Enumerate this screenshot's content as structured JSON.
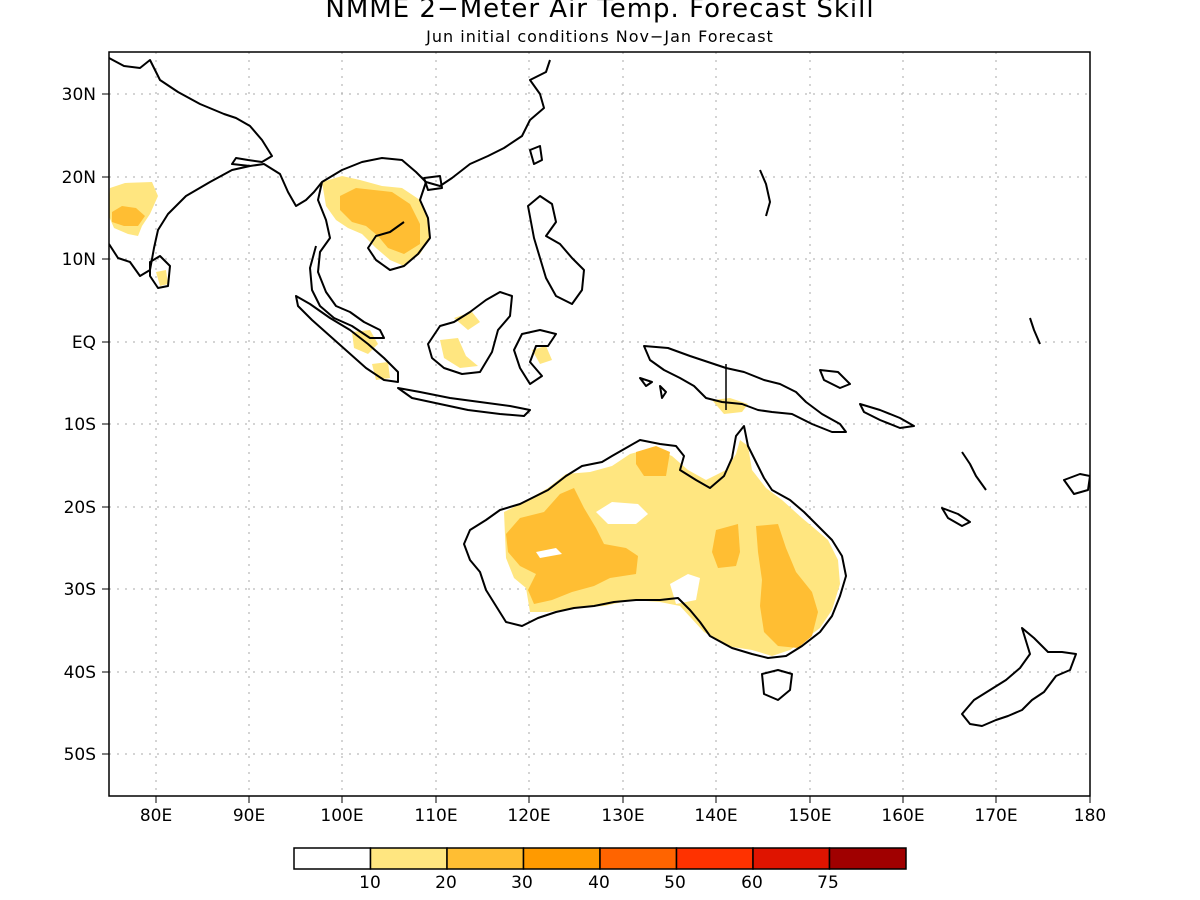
{
  "header": {
    "title": "NMME 2−Meter Air Temp. Forecast Skill",
    "subtitle": "Jun initial conditions  Nov−Jan Forecast"
  },
  "map": {
    "lon_range": [
      75,
      180
    ],
    "lat_range": [
      -55,
      35
    ],
    "lon_ticks": [
      "80E",
      "90E",
      "100E",
      "110E",
      "120E",
      "130E",
      "140E",
      "150E",
      "160E",
      "170E",
      "180"
    ],
    "lat_ticks": [
      "30N",
      "20N",
      "10N",
      "EQ",
      "10S",
      "20S",
      "30S",
      "40S",
      "50S"
    ],
    "gridlines": true
  },
  "colorbar": {
    "labels": [
      "10",
      "20",
      "30",
      "40",
      "50",
      "60",
      "75"
    ],
    "colors": [
      "#ffffff",
      "#ffe680",
      "#ffbe33",
      "#ff9a00",
      "#ff6400",
      "#ff3200",
      "#df1400",
      "#a00000"
    ]
  }
}
